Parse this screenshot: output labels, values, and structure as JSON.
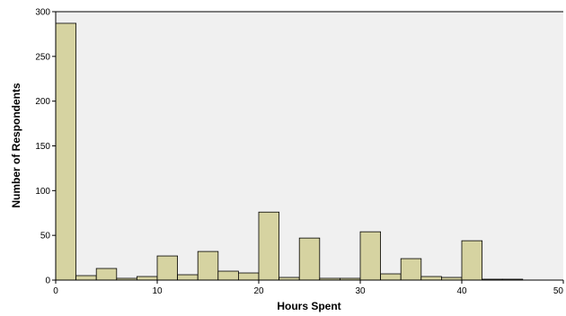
{
  "chart_data": {
    "type": "bar",
    "title": "",
    "xlabel": "Hours Spent",
    "ylabel": "Number of Respondents",
    "xlim": [
      0,
      50
    ],
    "ylim": [
      0,
      300
    ],
    "x_ticks": [
      0,
      10,
      20,
      30,
      40,
      50
    ],
    "y_ticks": [
      0,
      50,
      100,
      150,
      200,
      250,
      300
    ],
    "bin_width": 2,
    "bins": [
      {
        "start": 0,
        "end": 2,
        "value": 287
      },
      {
        "start": 2,
        "end": 4,
        "value": 5
      },
      {
        "start": 4,
        "end": 6,
        "value": 13
      },
      {
        "start": 6,
        "end": 8,
        "value": 2
      },
      {
        "start": 8,
        "end": 10,
        "value": 4
      },
      {
        "start": 10,
        "end": 12,
        "value": 27
      },
      {
        "start": 12,
        "end": 14,
        "value": 6
      },
      {
        "start": 14,
        "end": 16,
        "value": 32
      },
      {
        "start": 16,
        "end": 18,
        "value": 10
      },
      {
        "start": 18,
        "end": 20,
        "value": 8
      },
      {
        "start": 20,
        "end": 22,
        "value": 76
      },
      {
        "start": 22,
        "end": 24,
        "value": 3
      },
      {
        "start": 24,
        "end": 26,
        "value": 47
      },
      {
        "start": 26,
        "end": 28,
        "value": 2
      },
      {
        "start": 28,
        "end": 30,
        "value": 2
      },
      {
        "start": 30,
        "end": 32,
        "value": 54
      },
      {
        "start": 32,
        "end": 34,
        "value": 7
      },
      {
        "start": 34,
        "end": 36,
        "value": 24
      },
      {
        "start": 36,
        "end": 38,
        "value": 4
      },
      {
        "start": 38,
        "end": 40,
        "value": 3
      },
      {
        "start": 40,
        "end": 42,
        "value": 44
      },
      {
        "start": 42,
        "end": 44,
        "value": 1
      },
      {
        "start": 44,
        "end": 46,
        "value": 1
      }
    ],
    "grid": false,
    "colors": {
      "bar_fill": "#d6d3a1",
      "bar_stroke": "#000000",
      "plot_background": "#f0f0f0",
      "frame": "#000000"
    }
  }
}
